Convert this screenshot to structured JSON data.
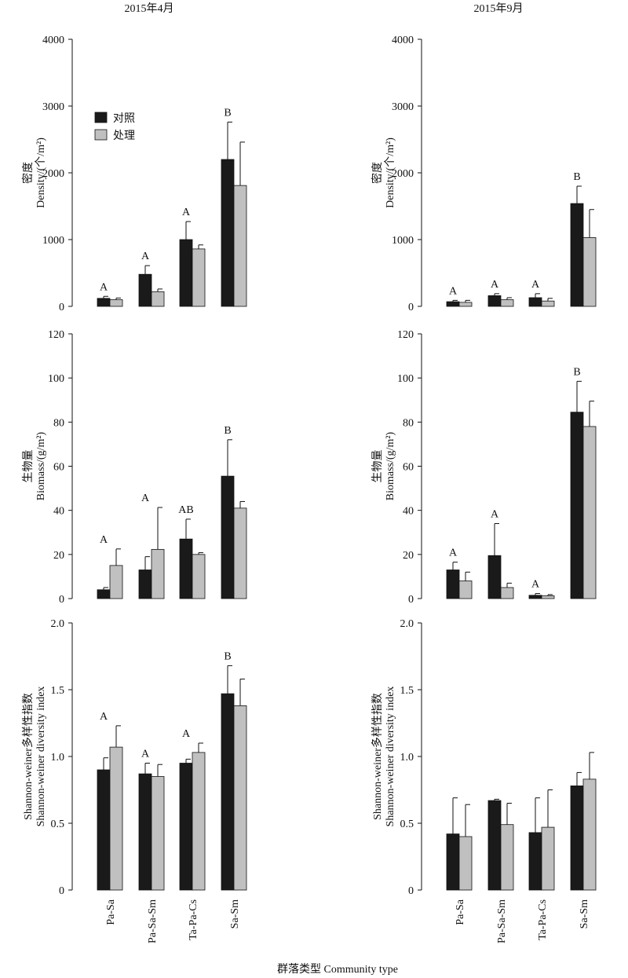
{
  "figure": {
    "column_titles": [
      "2015年4月",
      "2015年9月"
    ],
    "x_title": "群落类型 Community type",
    "legend": [
      {
        "label": "对照",
        "color": "#1a1a1a"
      },
      {
        "label": "处理",
        "color": "#c0c0c0"
      }
    ],
    "legend_placement": "upper-left of top-left panel"
  },
  "chart_data": [
    {
      "type": "bar",
      "column": "2015年4月",
      "ylabel_cn": "密度",
      "ylabel_en": "Density/(个/m²)",
      "ylim": [
        0,
        4000
      ],
      "yticks": [
        "0",
        "1000",
        "2000",
        "3000",
        "4000"
      ],
      "categories": [
        "Pa-Sa",
        "Pa-Sa-Sm",
        "Ta-Pa-Cs",
        "Sa-Sm"
      ],
      "series": [
        {
          "name": "对照",
          "values": [
            120,
            480,
            1000,
            2200
          ],
          "errors": [
            30,
            130,
            270,
            560
          ]
        },
        {
          "name": "处理",
          "values": [
            100,
            220,
            860,
            1810
          ],
          "errors": [
            25,
            40,
            60,
            650
          ]
        }
      ],
      "letters": [
        "A",
        "A",
        "A",
        "B"
      ]
    },
    {
      "type": "bar",
      "column": "2015年9月",
      "ylabel_cn": "密度",
      "ylabel_en": "Density/(个/m²)",
      "ylim": [
        0,
        4000
      ],
      "yticks": [
        "0",
        "1000",
        "2000",
        "3000",
        "4000"
      ],
      "categories": [
        "Pa-Sa",
        "Pa-Sa-Sm",
        "Ta-Pa-Cs",
        "Sa-Sm"
      ],
      "series": [
        {
          "name": "对照",
          "values": [
            70,
            160,
            130,
            1540
          ],
          "errors": [
            20,
            30,
            60,
            260
          ]
        },
        {
          "name": "处理",
          "values": [
            60,
            100,
            80,
            1030
          ],
          "errors": [
            30,
            30,
            40,
            420
          ]
        }
      ],
      "letters": [
        "A",
        "A",
        "A",
        "B"
      ]
    },
    {
      "type": "bar",
      "column": "2015年4月",
      "ylabel_cn": "生物量",
      "ylabel_en": "Biomass/(g/m²)",
      "ylim": [
        0,
        120
      ],
      "yticks": [
        "0",
        "20",
        "40",
        "60",
        "80",
        "100",
        "120"
      ],
      "categories": [
        "Pa-Sa",
        "Pa-Sa-Sm",
        "Ta-Pa-Cs",
        "Sa-Sm"
      ],
      "series": [
        {
          "name": "对照",
          "values": [
            4,
            13,
            27,
            55.5
          ],
          "errors": [
            1,
            6,
            9,
            16.5
          ]
        },
        {
          "name": "处理",
          "values": [
            15,
            22.3,
            20,
            41
          ],
          "errors": [
            7.5,
            19,
            0.8,
            3
          ]
        }
      ],
      "letters": [
        "A",
        "A",
        "AB",
        "B"
      ]
    },
    {
      "type": "bar",
      "column": "2015年9月",
      "ylabel_cn": "生物量",
      "ylabel_en": "Biomass/(g/m²)",
      "ylim": [
        0,
        120
      ],
      "yticks": [
        "0",
        "20",
        "40",
        "60",
        "80",
        "100",
        "120"
      ],
      "categories": [
        "Pa-Sa",
        "Pa-Sa-Sm",
        "Ta-Pa-Cs",
        "Sa-Sm"
      ],
      "series": [
        {
          "name": "对照",
          "values": [
            13,
            19.5,
            1.5,
            84.5
          ],
          "errors": [
            3.5,
            14.5,
            0.8,
            14
          ]
        },
        {
          "name": "处理",
          "values": [
            8,
            5,
            1.3,
            78
          ],
          "errors": [
            4,
            2,
            0.5,
            11.5
          ]
        }
      ],
      "letters": [
        "A",
        "A",
        "A",
        "B"
      ]
    },
    {
      "type": "bar",
      "column": "2015年4月",
      "ylabel_cn": "Shannon-weiner多样性指数",
      "ylabel_en": "Shannon-weiner diversity index",
      "ylim": [
        0,
        2.0
      ],
      "yticks": [
        "0",
        "0.5",
        "1.0",
        "1.5",
        "2.0"
      ],
      "categories": [
        "Pa-Sa",
        "Pa-Sa-Sm",
        "Ta-Pa-Cs",
        "Sa-Sm"
      ],
      "series": [
        {
          "name": "对照",
          "values": [
            0.9,
            0.87,
            0.95,
            1.47
          ],
          "errors": [
            0.09,
            0.08,
            0.03,
            0.21
          ]
        },
        {
          "name": "处理",
          "values": [
            1.07,
            0.85,
            1.03,
            1.38
          ],
          "errors": [
            0.16,
            0.09,
            0.07,
            0.2
          ]
        }
      ],
      "letters": [
        "A",
        "A",
        "A",
        "B"
      ]
    },
    {
      "type": "bar",
      "column": "2015年9月",
      "ylabel_cn": "Shannon-weiner多样性指数",
      "ylabel_en": "Shannon-weiner diversity index",
      "ylim": [
        0,
        2.0
      ],
      "yticks": [
        "0",
        "0.5",
        "1.0",
        "1.5",
        "2.0"
      ],
      "categories": [
        "Pa-Sa",
        "Pa-Sa-Sm",
        "Ta-Pa-Cs",
        "Sa-Sm"
      ],
      "series": [
        {
          "name": "对照",
          "values": [
            0.42,
            0.67,
            0.43,
            0.78
          ],
          "errors": [
            0.27,
            0.01,
            0.26,
            0.1
          ]
        },
        {
          "name": "处理",
          "values": [
            0.4,
            0.49,
            0.47,
            0.83
          ],
          "errors": [
            0.24,
            0.16,
            0.28,
            0.2
          ]
        }
      ],
      "letters": []
    }
  ]
}
